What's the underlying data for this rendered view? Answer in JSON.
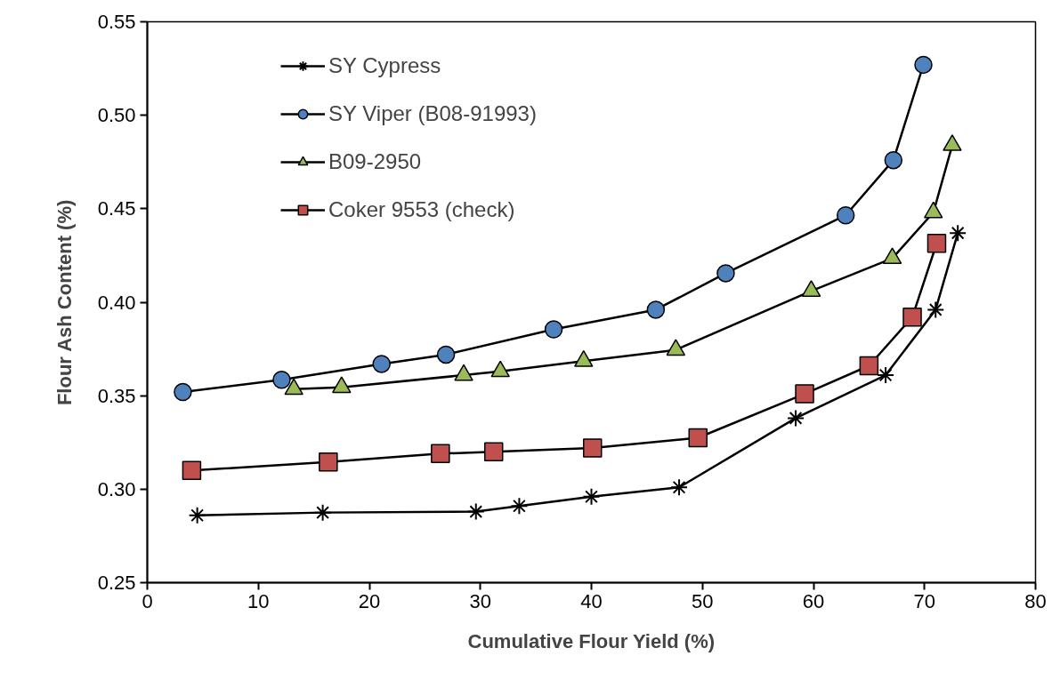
{
  "chart_data": {
    "type": "line",
    "xlabel": "Cumulative Flour Yield (%)",
    "ylabel": "Flour Ash Content (%)",
    "xlim": [
      0,
      80
    ],
    "xticks": [
      0,
      10,
      20,
      30,
      40,
      50,
      60,
      70,
      80
    ],
    "ylim": [
      0.25,
      0.55
    ],
    "yticks": [
      {
        "value": 0.25,
        "label": "0.25"
      },
      {
        "value": 0.3,
        "label": "0.30"
      },
      {
        "value": 0.35,
        "label": "0.35"
      },
      {
        "value": 0.4,
        "label": "0.40"
      },
      {
        "value": 0.45,
        "label": "0.45"
      },
      {
        "value": 0.5,
        "label": "0.50"
      },
      {
        "value": 0.55,
        "label": "0.55"
      }
    ],
    "grid": false,
    "legend": "top left",
    "line_style": "solid",
    "series": [
      {
        "name": "SY Cypress",
        "color": "#000000",
        "marker": "cross",
        "x": [
          4.5,
          15.8,
          29.6,
          33.5,
          40.0,
          47.9,
          58.4,
          66.5,
          71.0,
          73.0
        ],
        "values": [
          0.286,
          0.2875,
          0.288,
          0.291,
          0.296,
          0.301,
          0.338,
          0.361,
          0.396,
          0.437
        ]
      },
      {
        "name": "SY Viper (B08-91993)",
        "color": "#4f81bd",
        "marker": "circle",
        "x": [
          3.2,
          12.1,
          21.1,
          26.9,
          36.6,
          45.8,
          52.1,
          62.9,
          67.2,
          69.9
        ],
        "values": [
          0.352,
          0.3585,
          0.367,
          0.372,
          0.3855,
          0.396,
          0.4155,
          0.4465,
          0.476,
          0.527
        ]
      },
      {
        "name": "B09-2950",
        "color": "#9bbb59",
        "marker": "triangle",
        "x": [
          13.2,
          17.5,
          28.5,
          31.8,
          39.3,
          47.6,
          59.8,
          67.1,
          70.8,
          72.5
        ],
        "values": [
          0.3535,
          0.3545,
          0.361,
          0.363,
          0.3685,
          0.3745,
          0.406,
          0.4235,
          0.448,
          0.484
        ]
      },
      {
        "name": "Coker 9553 (check)",
        "color": "#c0504d",
        "marker": "square",
        "x": [
          4.0,
          16.3,
          26.4,
          31.2,
          40.1,
          49.6,
          59.2,
          65.0,
          68.9,
          71.1
        ],
        "values": [
          0.31,
          0.3145,
          0.319,
          0.32,
          0.322,
          0.3275,
          0.351,
          0.366,
          0.392,
          0.4315
        ]
      }
    ]
  }
}
